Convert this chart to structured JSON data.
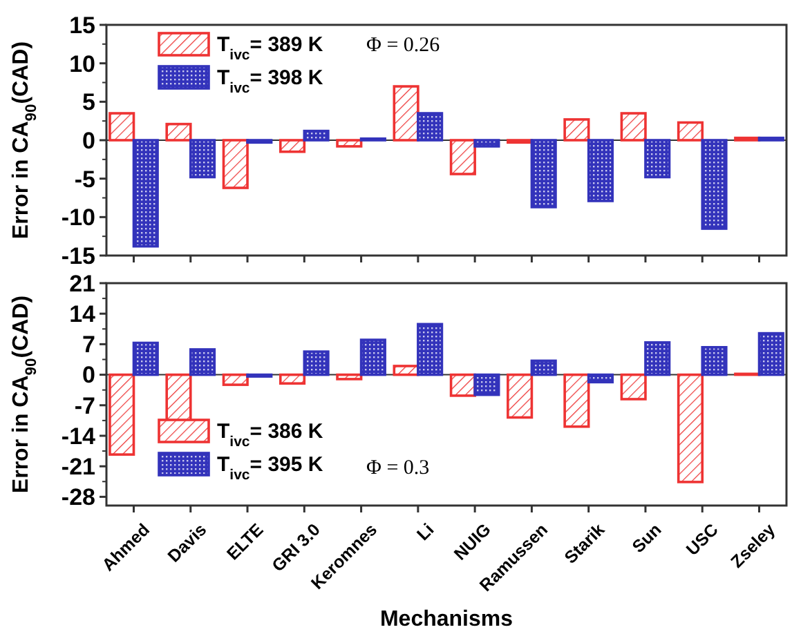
{
  "chart_data": [
    {
      "type": "bar",
      "ylabel": "Error in CA$_{90}$(CAD)",
      "categories": [
        null,
        null,
        null,
        null,
        null,
        null,
        null,
        null,
        null,
        null,
        null,
        null
      ],
      "ylim": [
        -15,
        15
      ],
      "yticks": [
        -15,
        -10,
        -5,
        0,
        5,
        10,
        15
      ],
      "tick_labels": "y",
      "legend": "top left",
      "annotations": [
        "Φ = 0.26"
      ],
      "series": [
        {
          "name": "T$_{ivc}$= 389 K",
          "color": "#ee3333",
          "values": [
            3.5,
            2.1,
            -6.2,
            -1.5,
            -0.8,
            7.0,
            -4.4,
            -0.3,
            2.7,
            3.5,
            2.3,
            0.3
          ]
        },
        {
          "name": "T$_{ivc}$= 398 K",
          "color": "#3333bb",
          "values": [
            -13.8,
            -4.8,
            -0.3,
            1.2,
            0.2,
            3.5,
            -0.8,
            -8.7,
            -7.9,
            -4.8,
            -11.5,
            0.3
          ]
        }
      ]
    },
    {
      "type": "bar",
      "xlabel": "Mechanisms",
      "ylabel": "Error in CA$_{90}$(CAD)",
      "categories": [
        "Ahmed",
        "Davis",
        "ELTE",
        "GRI 3.0",
        "Keromnes",
        "Li",
        "NUIG",
        "Ramussen",
        "Starik",
        "Sun",
        "USC",
        "Zseley"
      ],
      "ylim": [
        -30,
        21
      ],
      "yticks": [
        -28,
        -21,
        -14,
        -7,
        0,
        7,
        14,
        21
      ],
      "legend": "bottom left",
      "annotations": [
        "Φ = 0.3"
      ],
      "series": [
        {
          "name": "T$_{ivc}$= 386 K",
          "color": "#ee3333",
          "values": [
            -18.3,
            -11.3,
            -2.3,
            -2.0,
            -1.0,
            2.0,
            -4.8,
            -9.8,
            -11.9,
            -5.6,
            -24.6,
            0.2
          ]
        },
        {
          "name": "T$_{ivc}$= 395 K",
          "color": "#3333bb",
          "values": [
            7.3,
            5.8,
            -0.4,
            5.3,
            8.0,
            11.6,
            -4.6,
            3.2,
            -1.7,
            7.4,
            6.3,
            9.5
          ]
        }
      ]
    }
  ]
}
